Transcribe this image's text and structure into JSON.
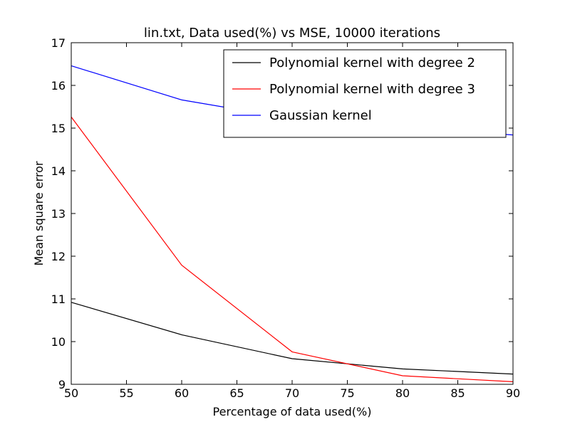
{
  "chart_data": {
    "type": "line",
    "title": "lin.txt, Data used(%) vs MSE, 10000 iterations",
    "xlabel": "Percentage of data used(%)",
    "ylabel": "Mean square error",
    "xlim": [
      50,
      90
    ],
    "ylim": [
      9,
      17
    ],
    "xticks": [
      "50",
      "55",
      "60",
      "65",
      "70",
      "75",
      "80",
      "85",
      "90"
    ],
    "yticks": [
      "9",
      "10",
      "11",
      "12",
      "13",
      "14",
      "15",
      "16",
      "17"
    ],
    "x": [
      50,
      60,
      70,
      80,
      90
    ],
    "series": [
      {
        "name": "Polynomial kernel with degree 2",
        "color": "#000000",
        "values": [
          10.92,
          10.16,
          9.6,
          9.36,
          9.24
        ]
      },
      {
        "name": "Polynomial kernel with degree 3",
        "color": "#ff0000",
        "values": [
          15.26,
          11.79,
          9.76,
          9.2,
          9.06
        ]
      },
      {
        "name": "Gaussian kernel",
        "color": "#0000ff",
        "values": [
          16.46,
          15.66,
          15.22,
          15.01,
          14.84
        ]
      }
    ],
    "legend": "top-right",
    "grid": false
  }
}
